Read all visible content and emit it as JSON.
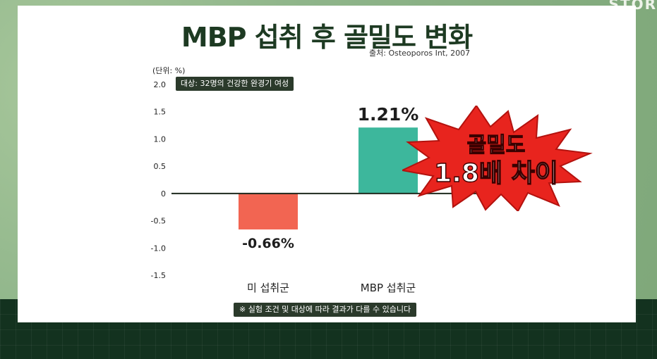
{
  "brand": "STOR",
  "header": {
    "title": "MBP 섭취 후 골밀도 변화",
    "source": "출처: Osteoporos Int, 2007"
  },
  "chart_data": {
    "type": "bar",
    "title": "MBP 섭취 후 골밀도 변화",
    "unit_label": "(단위: %)",
    "categories": [
      "미 섭취군",
      "MBP 섭취군"
    ],
    "values": [
      -0.66,
      1.21
    ],
    "value_labels": [
      "-0.66%",
      "1.21%"
    ],
    "ylim": [
      -1.5,
      2.0
    ],
    "yticks": [
      2.0,
      1.5,
      1.0,
      0.5,
      0,
      -0.5,
      -1.0,
      -1.5
    ],
    "ytick_labels": [
      "2.0",
      "1.5",
      "1.0",
      "0.5",
      "0",
      "-0.5",
      "-1.0",
      "-1.5"
    ],
    "colors": [
      "#f26552",
      "#3db79c"
    ],
    "grid": false,
    "legend": "none"
  },
  "annotations": {
    "subject_note": "대상: 32명의 건강한 완경기 여성",
    "burst_line1": "골밀도",
    "burst_line2": "1.8배 차이",
    "burst_color": "#e8241e",
    "footnote": "※ 실험 조건 및 대상에 따라 결과가 다를 수 있습니다"
  }
}
